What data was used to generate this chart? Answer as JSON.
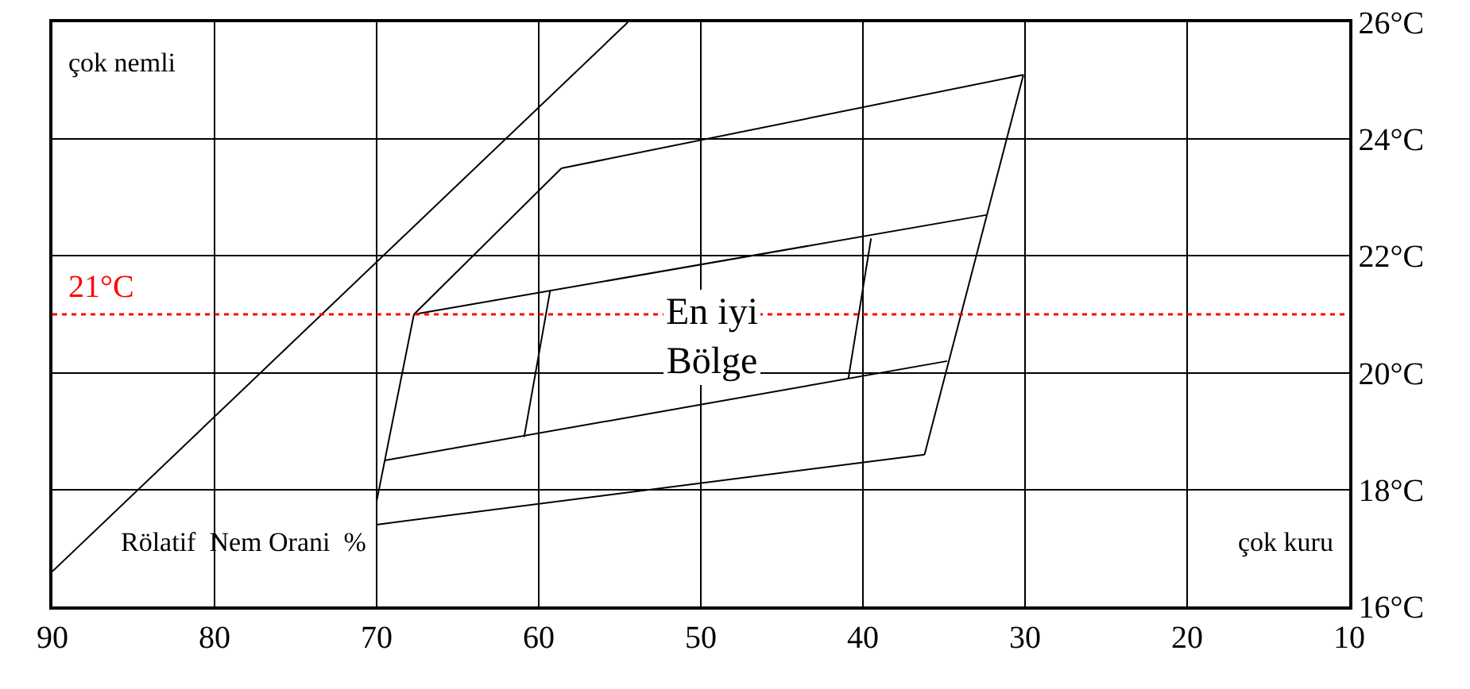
{
  "chart_data": {
    "type": "line",
    "xlim": [
      90,
      10
    ],
    "ylim": [
      16,
      26
    ],
    "xticks": [
      90,
      80,
      70,
      60,
      50,
      40,
      30,
      20,
      10
    ],
    "yticks": [
      {
        "value": 16,
        "label": "16°C"
      },
      {
        "value": 18,
        "label": "18°C"
      },
      {
        "value": 20,
        "label": "20°C"
      },
      {
        "value": 22,
        "label": "22°C"
      },
      {
        "value": 24,
        "label": "24°C"
      },
      {
        "value": 26,
        "label": "26°C"
      }
    ],
    "grid": true,
    "marker": "none",
    "line_style": "solid",
    "series": [
      {
        "color": "#000000",
        "x": [
          67.7,
          58.6
        ],
        "values": [
          21.0,
          23.5
        ]
      },
      {
        "color": "#000000",
        "x": [
          58.6,
          30.1
        ],
        "values": [
          23.5,
          25.1
        ]
      },
      {
        "color": "#000000",
        "x": [
          30.1,
          36.2
        ],
        "values": [
          25.1,
          18.6
        ]
      },
      {
        "color": "#000000",
        "x": [
          36.2,
          70.0
        ],
        "values": [
          18.6,
          17.4
        ]
      },
      {
        "color": "#000000",
        "x": [
          70.0,
          70.0,
          67.7
        ],
        "values": [
          17.4,
          17.8,
          21.0
        ]
      },
      {
        "color": "#000000",
        "x": [
          67.7,
          32.4
        ],
        "values": [
          21.0,
          22.7
        ]
      },
      {
        "color": "#000000",
        "x": [
          69.5,
          34.8
        ],
        "values": [
          18.5,
          20.2
        ]
      },
      {
        "color": "#000000",
        "x": [
          59.3,
          60.9
        ],
        "values": [
          21.4,
          18.9
        ]
      },
      {
        "color": "#000000",
        "x": [
          39.5,
          40.9
        ],
        "values": [
          22.3,
          19.9
        ]
      },
      {
        "color": "#000000",
        "x": [
          90,
          54.5
        ],
        "values": [
          16.6,
          26
        ]
      }
    ],
    "ref_lines": [
      {
        "axis": "y",
        "value": 21,
        "label": "21°C",
        "color": "#ff0000",
        "line_style": "dotted"
      }
    ],
    "annotations": [
      "En iyi Bölge",
      "çok nemli",
      "çok kuru",
      "Rölatif  Nem Orani  %"
    ]
  }
}
